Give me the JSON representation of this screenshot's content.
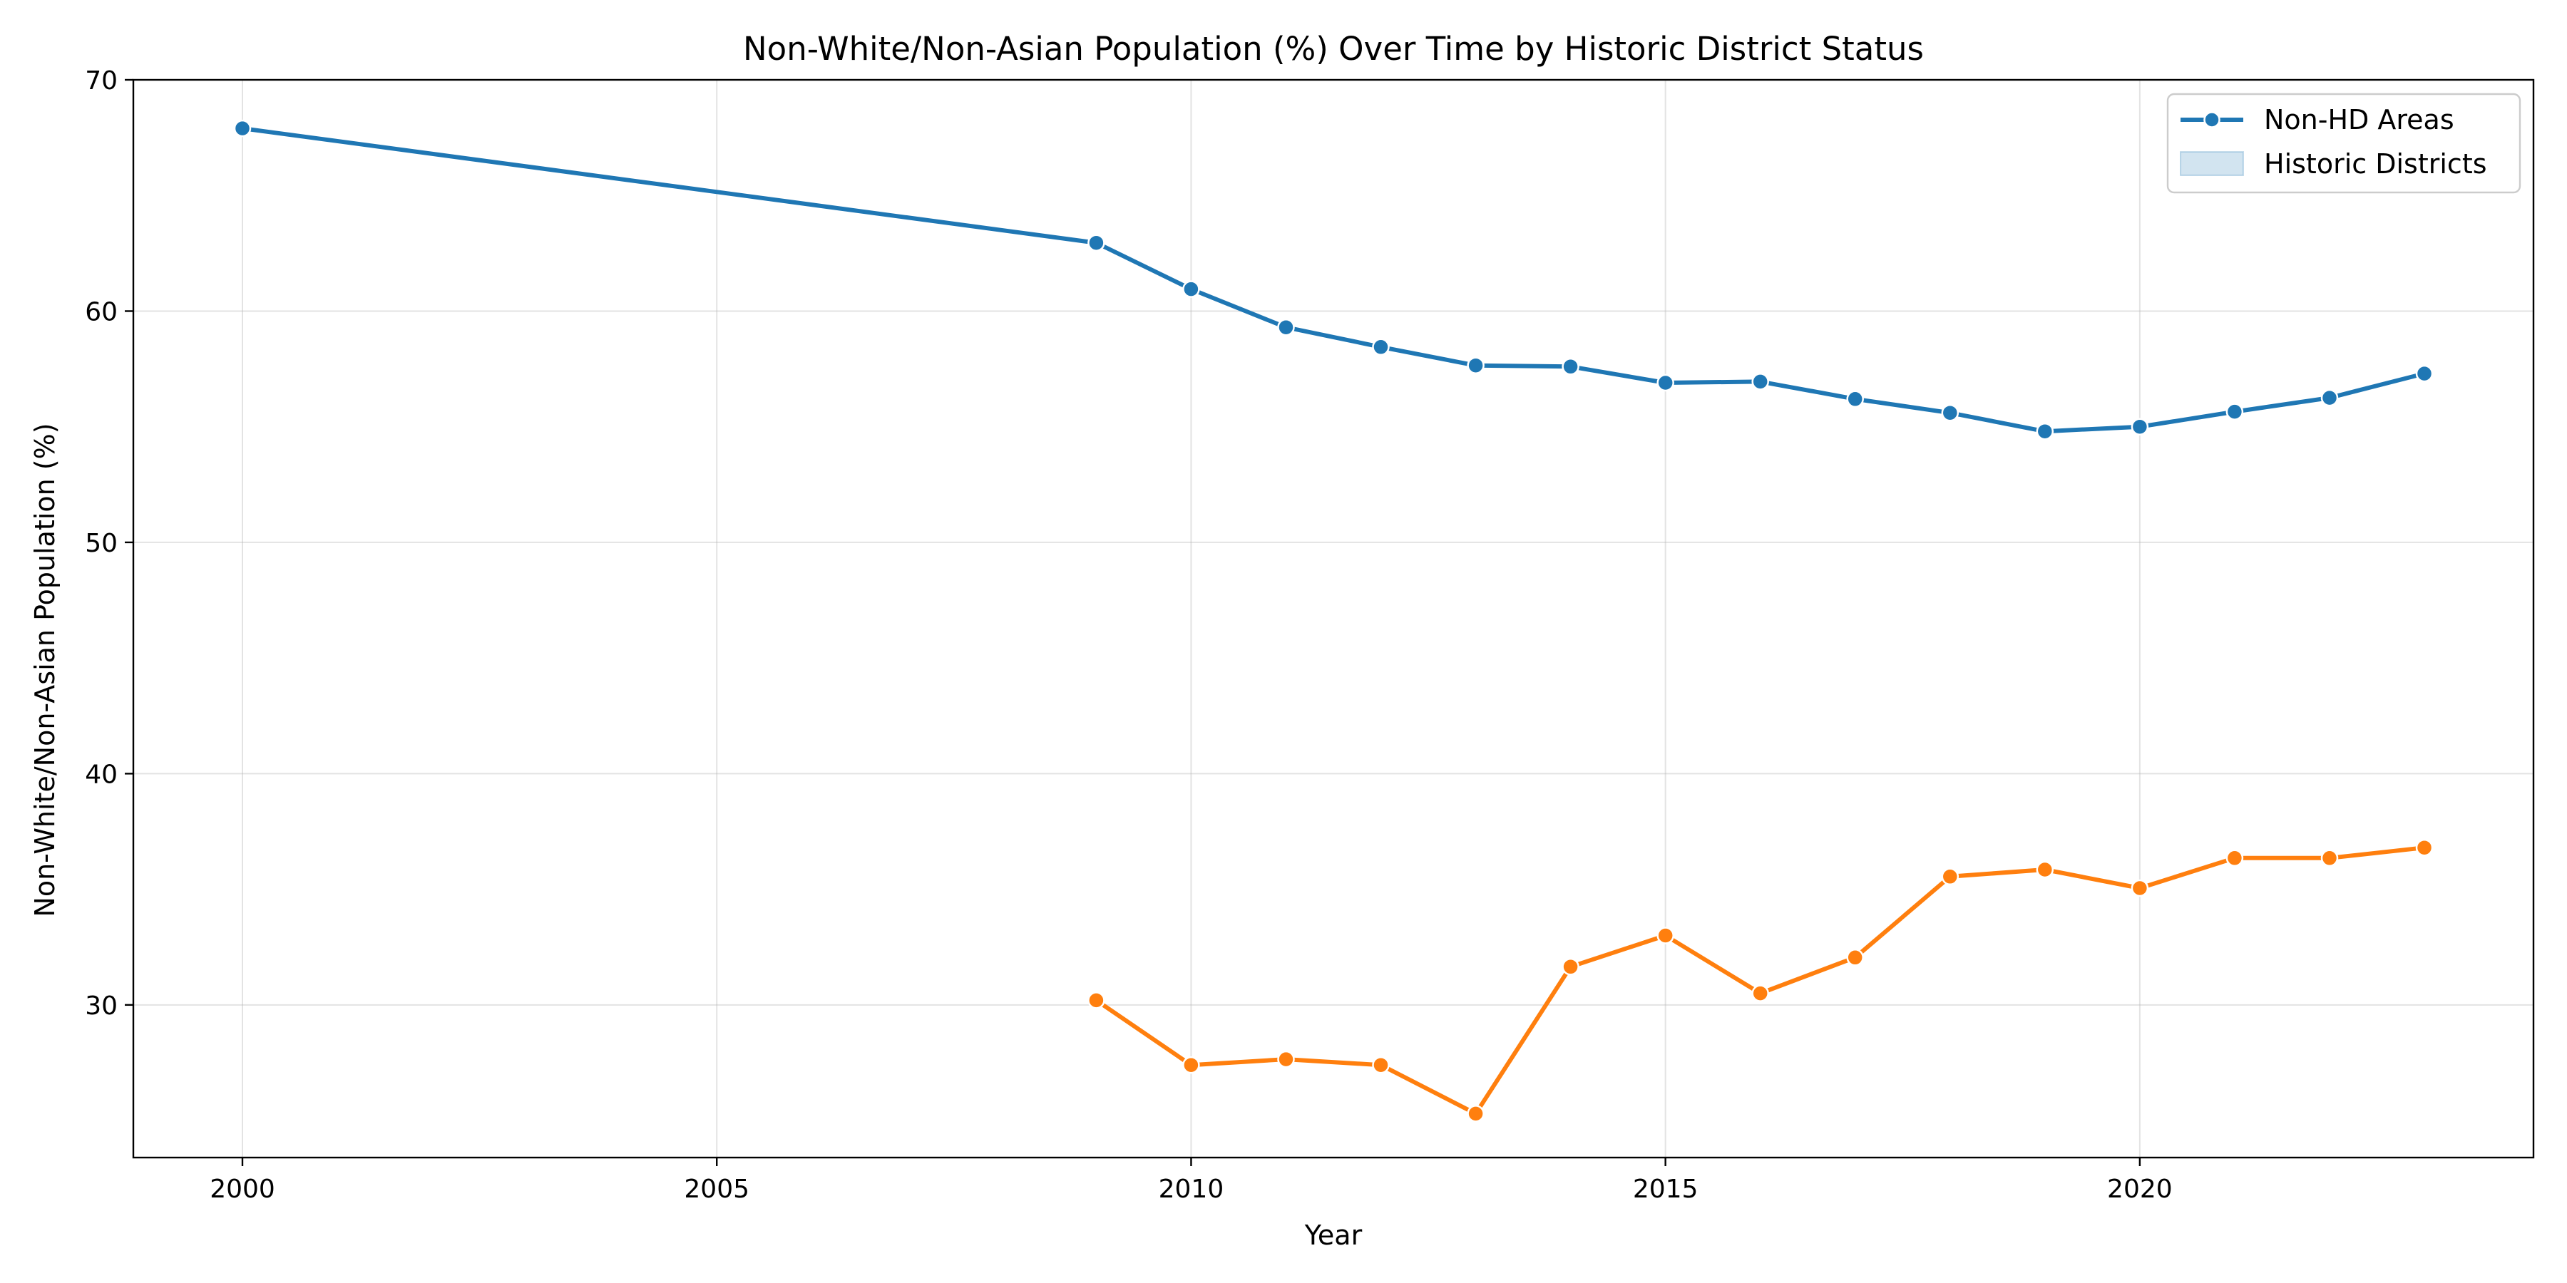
{
  "chart_data": {
    "type": "line",
    "title": "Non-White/Non-Asian Population (%) Over Time by Historic District Status",
    "xlabel": "Year",
    "ylabel": "Non-White/Non-Asian Population (%)",
    "xlim": [
      1998.85,
      2024.15
    ],
    "ylim": [
      23.4,
      70
    ],
    "x_ticks": [
      2000,
      2005,
      2010,
      2015,
      2020
    ],
    "y_ticks": [
      30,
      40,
      50,
      60,
      70
    ],
    "grid": true,
    "legend_position": "top-right",
    "series": [
      {
        "name": "Non-HD Areas",
        "color": "#1f77b4",
        "legend_style": "line-marker",
        "x": [
          2000,
          2009,
          2010,
          2011,
          2012,
          2013,
          2014,
          2015,
          2016,
          2017,
          2018,
          2019,
          2020,
          2021,
          2022,
          2023
        ],
        "values": [
          67.9,
          62.95,
          60.95,
          59.3,
          58.45,
          57.65,
          57.6,
          56.9,
          56.95,
          56.2,
          55.6,
          54.8,
          55.0,
          55.65,
          56.25,
          57.3
        ]
      },
      {
        "name": "",
        "color": "#ff7f0e",
        "x": [
          2009,
          2010,
          2011,
          2012,
          2013,
          2014,
          2015,
          2016,
          2017,
          2018,
          2019,
          2020,
          2021,
          2022,
          2023
        ],
        "values": [
          30.2,
          27.4,
          27.65,
          27.4,
          25.3,
          31.65,
          33.0,
          30.5,
          32.05,
          35.55,
          35.85,
          35.05,
          36.35,
          36.35,
          36.8
        ]
      }
    ],
    "legend_entries": [
      {
        "label": "Non-HD Areas",
        "color": "#1f77b4",
        "style": "line-marker"
      },
      {
        "label": "Historic Districts",
        "color": "#1f77b4",
        "style": "patch"
      }
    ]
  }
}
